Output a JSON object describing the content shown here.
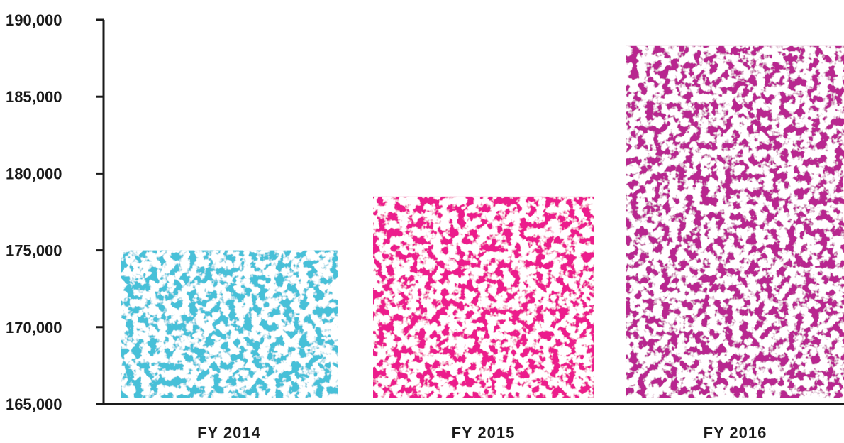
{
  "chart_data": {
    "type": "bar",
    "title": "",
    "xlabel": "",
    "ylabel": "",
    "categories": [
      "FY 2014",
      "FY 2015",
      "FY 2016"
    ],
    "values": [
      175000,
      178500,
      188300
    ],
    "colors": [
      "#46c0d8",
      "#ec1a8c",
      "#b8258f"
    ],
    "ylim": [
      165000,
      190000
    ],
    "yticks": [
      165000,
      170000,
      175000,
      180000,
      185000,
      190000
    ],
    "ytick_labels": [
      "165,000",
      "170,000",
      "175,000",
      "180,000",
      "185,000",
      "190,000"
    ],
    "grid": false,
    "legend": "none"
  }
}
